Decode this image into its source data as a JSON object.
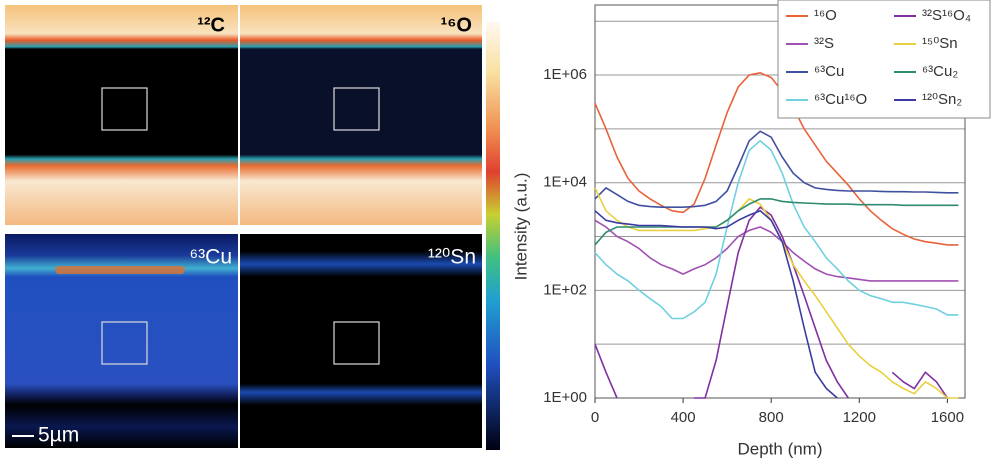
{
  "images": [
    {
      "label": "¹²C"
    },
    {
      "label": "¹⁶O"
    },
    {
      "label": "⁶³Cu"
    },
    {
      "label": "¹²⁰Sn"
    }
  ],
  "scale_bar": "5µm",
  "chart_data": {
    "type": "line",
    "xlabel": "Depth (nm)",
    "ylabel": "Intensity (a.u.)",
    "log_y": true,
    "grid": true,
    "xlim": [
      0,
      1680
    ],
    "xticks": [
      0,
      400,
      800,
      1200,
      1600
    ],
    "ylim": [
      1,
      20000000
    ],
    "yticks": [
      {
        "value": 1,
        "label": "1E+00"
      },
      {
        "value": 100,
        "label": "1E+02"
      },
      {
        "value": 10000,
        "label": "1E+04"
      },
      {
        "value": 1000000,
        "label": "1E+06"
      }
    ],
    "minor_yticks": [
      10,
      1000,
      100000,
      10000000
    ],
    "legend": "upper right",
    "x": [
      0,
      50,
      100,
      150,
      200,
      250,
      300,
      350,
      400,
      450,
      500,
      550,
      600,
      650,
      700,
      750,
      800,
      850,
      900,
      950,
      1000,
      1050,
      1100,
      1150,
      1200,
      1250,
      1300,
      1350,
      1400,
      1450,
      1500,
      1550,
      1600,
      1650
    ],
    "series": [
      {
        "name": "¹⁶O",
        "color": "#e8623a",
        "values": [
          300000,
          100000,
          30000,
          12000,
          7000,
          5000,
          3800,
          3000,
          2800,
          4000,
          12000,
          50000,
          200000,
          600000,
          1000000,
          1100000,
          900000,
          500000,
          250000,
          100000,
          50000,
          25000,
          15000,
          9000,
          5000,
          3000,
          2000,
          1400,
          1100,
          900,
          800,
          750,
          700,
          700
        ]
      },
      {
        "name": "³²S",
        "color": "#a050b0",
        "values": [
          2000,
          1500,
          1000,
          800,
          600,
          400,
          300,
          250,
          200,
          250,
          300,
          400,
          600,
          1000,
          1300,
          1500,
          1200,
          800,
          500,
          350,
          250,
          200,
          180,
          170,
          160,
          150,
          150,
          150,
          150,
          150,
          150,
          150,
          150,
          150
        ]
      },
      {
        "name": "⁶³Cu",
        "color": "#4050a0",
        "values": [
          5000,
          8000,
          6000,
          4500,
          3800,
          3600,
          3500,
          3500,
          3500,
          3600,
          3800,
          4500,
          7000,
          20000,
          60000,
          90000,
          70000,
          30000,
          15000,
          10000,
          8000,
          7500,
          7200,
          7000,
          7000,
          7000,
          6900,
          6800,
          6800,
          6700,
          6700,
          6600,
          6500,
          6500
        ]
      },
      {
        "name": "⁶³Cu¹⁶O",
        "color": "#6fd0e0",
        "values": [
          500,
          300,
          200,
          150,
          100,
          70,
          50,
          30,
          30,
          40,
          60,
          200,
          1500,
          10000,
          40000,
          60000,
          40000,
          15000,
          4000,
          1500,
          800,
          400,
          250,
          150,
          100,
          80,
          70,
          60,
          60,
          55,
          50,
          45,
          35,
          35
        ]
      },
      {
        "name": "³²S¹⁶O₄",
        "color": "#8030a0",
        "values": [
          10,
          3,
          1,
          null,
          null,
          null,
          null,
          null,
          null,
          1,
          1,
          5,
          50,
          500,
          2000,
          3500,
          2500,
          1000,
          300,
          80,
          20,
          5,
          2,
          1,
          null,
          null,
          null,
          3,
          2,
          1.5,
          3,
          2,
          1,
          null
        ]
      },
      {
        "name": "¹⁵⁰Sn",
        "color": "#e8d040",
        "values": [
          8000,
          3000,
          2000,
          1500,
          1300,
          1300,
          1300,
          1300,
          1300,
          1300,
          1400,
          1500,
          2000,
          3000,
          5000,
          4000,
          2000,
          800,
          300,
          150,
          80,
          40,
          20,
          10,
          6,
          4,
          3,
          2,
          1.5,
          1.2,
          2,
          1.5,
          1,
          1
        ]
      },
      {
        "name": "⁶³Cu₂",
        "color": "#2e8a70",
        "values": [
          700,
          1200,
          1500,
          1500,
          1500,
          1500,
          1500,
          1500,
          1500,
          1500,
          1500,
          1500,
          2000,
          3000,
          4000,
          5000,
          5000,
          4500,
          4300,
          4200,
          4100,
          4000,
          4000,
          4000,
          3900,
          3900,
          3900,
          3900,
          3800,
          3800,
          3800,
          3800,
          3800,
          3800
        ]
      },
      {
        "name": "¹²⁰Sn₂",
        "color": "#3a3aa0",
        "values": [
          3000,
          2000,
          1800,
          1700,
          1600,
          1600,
          1600,
          1550,
          1500,
          1500,
          1500,
          1400,
          1500,
          2000,
          2500,
          3000,
          2000,
          800,
          150,
          20,
          3,
          1.5,
          1,
          null,
          null,
          null,
          null,
          null,
          null,
          null,
          null,
          null,
          null,
          null
        ]
      }
    ]
  }
}
